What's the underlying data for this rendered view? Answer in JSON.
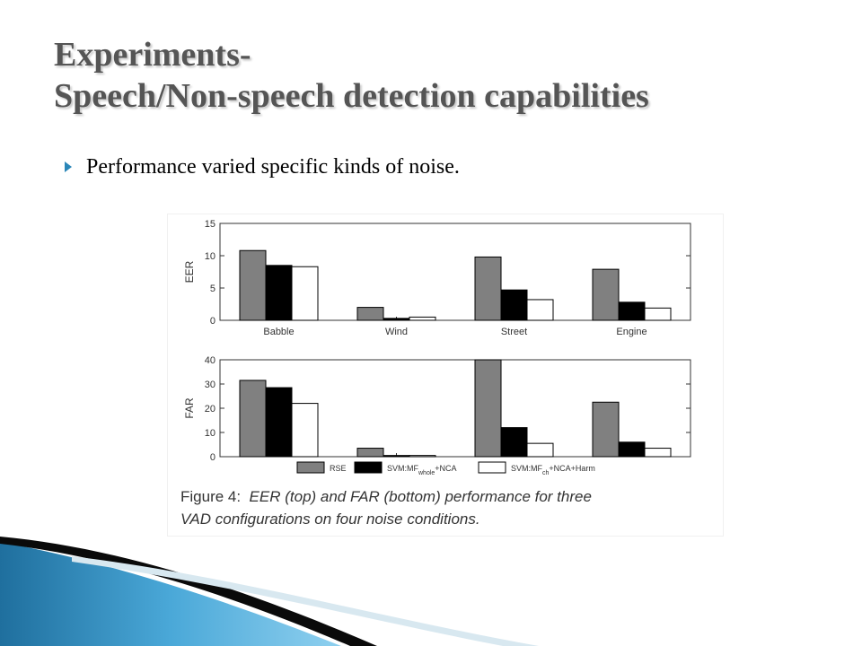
{
  "slide": {
    "title_line1": "Experiments-",
    "title_line2": "Speech/Non-speech detection capabilities",
    "bullet": "Performance varied specific kinds of noise."
  },
  "caption": {
    "label": "Figure 4:",
    "text_line1": "EER (top) and FAR (bottom) performance for three",
    "text_line2": "VAD configurations on four noise conditions."
  },
  "legend": {
    "items": [
      {
        "label": "RSE",
        "sub": "",
        "suffix": ""
      },
      {
        "label": "SVM:MF",
        "sub": "whole",
        "suffix": "+NCA"
      },
      {
        "label": "SVM:MF",
        "sub": "ch",
        "suffix": "+NCA+Harm"
      }
    ]
  },
  "chart_data": [
    {
      "type": "bar",
      "categories": [
        "Babble",
        "Wind",
        "Street",
        "Engine"
      ],
      "ylabel": "EER",
      "ylim": [
        0,
        15
      ],
      "yticks": [
        0,
        5,
        10,
        15
      ],
      "series": [
        {
          "name": "RSE",
          "values": [
            10.8,
            2.0,
            9.8,
            7.9
          ],
          "color": "#808080"
        },
        {
          "name": "SVM:MFwhole+NCA",
          "values": [
            8.5,
            0.3,
            4.7,
            2.8
          ],
          "color": "#000000"
        },
        {
          "name": "SVM:MFch+NCA+Harm",
          "values": [
            8.3,
            0.5,
            3.2,
            1.9
          ],
          "color": "#ffffff"
        }
      ]
    },
    {
      "type": "bar",
      "categories": [
        "Babble",
        "Wind",
        "Street",
        "Engine"
      ],
      "ylabel": "FAR",
      "ylim": [
        0,
        40
      ],
      "yticks": [
        0,
        10,
        20,
        30,
        40
      ],
      "series": [
        {
          "name": "RSE",
          "values": [
            31.5,
            3.5,
            40.0,
            22.5
          ],
          "color": "#808080"
        },
        {
          "name": "SVM:MFwhole+NCA",
          "values": [
            28.5,
            0.5,
            12.0,
            6.0
          ],
          "color": "#000000"
        },
        {
          "name": "SVM:MFch+NCA+Harm",
          "values": [
            22.0,
            0.5,
            5.5,
            3.5
          ],
          "color": "#ffffff"
        }
      ]
    }
  ]
}
